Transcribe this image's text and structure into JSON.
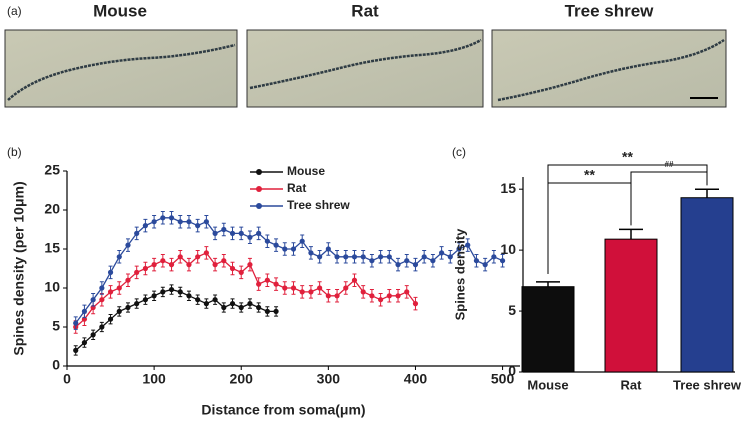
{
  "panel_a": {
    "label": "(a)",
    "images": [
      "Mouse",
      "Rat",
      "Tree shrew"
    ]
  },
  "chart_data": [
    {
      "type": "line",
      "panel_label": "(b)",
      "x_label": "Distance from soma(μm)",
      "y_label": "Spines density (per 10μm)",
      "xlim": [
        0,
        520
      ],
      "xticks": [
        0,
        100,
        200,
        300,
        400,
        500
      ],
      "ylim": [
        0,
        25
      ],
      "yticks": [
        0,
        5,
        10,
        15,
        20,
        25
      ],
      "legend": "top-center",
      "series": [
        {
          "name": "Mouse",
          "color": "#111111",
          "x": [
            10,
            20,
            30,
            40,
            50,
            60,
            70,
            80,
            90,
            100,
            110,
            120,
            130,
            140,
            150,
            160,
            170,
            180,
            190,
            200,
            210,
            220,
            230,
            240
          ],
          "values": [
            2,
            3,
            4,
            5,
            6,
            7,
            7.5,
            8,
            8.5,
            9,
            9.5,
            9.8,
            9.5,
            9,
            8.5,
            8,
            8.5,
            7.5,
            8,
            7.5,
            8,
            7.5,
            7,
            7
          ],
          "errors": [
            0.6,
            0.6,
            0.6,
            0.6,
            0.6,
            0.6,
            0.6,
            0.6,
            0.6,
            0.6,
            0.6,
            0.6,
            0.6,
            0.6,
            0.6,
            0.6,
            0.6,
            0.6,
            0.6,
            0.6,
            0.6,
            0.6,
            0.6,
            0.6
          ]
        },
        {
          "name": "Rat",
          "color": "#e0203c",
          "x": [
            10,
            20,
            30,
            40,
            50,
            60,
            70,
            80,
            90,
            100,
            110,
            120,
            130,
            140,
            150,
            160,
            170,
            180,
            190,
            200,
            210,
            220,
            230,
            240,
            250,
            260,
            270,
            280,
            290,
            300,
            310,
            320,
            330,
            340,
            350,
            360,
            370,
            380,
            390,
            400
          ],
          "values": [
            5,
            6,
            7.5,
            8.5,
            9.5,
            10,
            11,
            12,
            12.5,
            13,
            13.5,
            13,
            14,
            13,
            14,
            14.5,
            13,
            13.5,
            12.5,
            12,
            13,
            10.5,
            11,
            10.5,
            10,
            10,
            9.5,
            9.5,
            10,
            9,
            9,
            10,
            11,
            9.5,
            9,
            8.5,
            9,
            9,
            9.5,
            8
          ],
          "errors": [
            0.8,
            0.8,
            0.8,
            0.8,
            0.8,
            0.8,
            0.8,
            0.8,
            0.8,
            0.8,
            0.8,
            0.8,
            0.8,
            0.8,
            0.8,
            0.8,
            0.8,
            0.8,
            0.8,
            0.8,
            0.8,
            0.8,
            0.8,
            0.8,
            0.8,
            0.8,
            0.8,
            0.8,
            0.8,
            0.8,
            0.8,
            0.8,
            0.8,
            0.8,
            0.8,
            0.8,
            0.8,
            0.8,
            0.8,
            0.8
          ]
        },
        {
          "name": "Tree shrew",
          "color": "#2b4a9c",
          "x": [
            10,
            20,
            30,
            40,
            50,
            60,
            70,
            80,
            90,
            100,
            110,
            120,
            130,
            140,
            150,
            160,
            170,
            180,
            190,
            200,
            210,
            220,
            230,
            240,
            250,
            260,
            270,
            280,
            290,
            300,
            310,
            320,
            330,
            340,
            350,
            360,
            370,
            380,
            390,
            400,
            410,
            420,
            430,
            440,
            450,
            460,
            470,
            480,
            490,
            500
          ],
          "values": [
            5.5,
            7,
            8.5,
            10,
            12,
            14,
            15.5,
            17,
            18,
            18.5,
            19,
            19,
            18.5,
            18.5,
            18,
            18.5,
            17,
            17.5,
            17,
            17,
            16.5,
            17,
            16,
            15.5,
            15,
            15,
            16,
            14.5,
            14,
            15,
            14,
            14,
            14,
            14,
            13.5,
            14,
            14,
            13,
            13.5,
            13,
            14,
            13.5,
            14.5,
            14,
            15,
            15.5,
            13.5,
            13,
            14,
            13.5
          ],
          "errors": [
            0.8,
            0.8,
            0.8,
            0.8,
            0.8,
            0.8,
            0.8,
            0.8,
            0.8,
            0.8,
            0.8,
            0.8,
            0.8,
            0.8,
            0.8,
            0.8,
            0.8,
            0.8,
            0.8,
            0.8,
            0.8,
            0.8,
            0.8,
            0.8,
            0.8,
            0.8,
            0.8,
            0.8,
            0.8,
            0.8,
            0.8,
            0.8,
            0.8,
            0.8,
            0.8,
            0.8,
            0.8,
            0.8,
            0.8,
            0.8,
            0.8,
            0.8,
            0.8,
            0.8,
            0.8,
            0.8,
            0.8,
            0.8,
            0.8,
            0.8
          ]
        }
      ]
    },
    {
      "type": "bar",
      "panel_label": "(c)",
      "y_label": "Spines density",
      "categories": [
        "Mouse",
        "Rat",
        "Tree shrew"
      ],
      "values": [
        7.0,
        10.9,
        14.3
      ],
      "errors": [
        0.4,
        0.8,
        0.7
      ],
      "colors": [
        "#0d0d0d",
        "#d0103a",
        "#253f8f"
      ],
      "ylim": [
        0,
        16
      ],
      "yticks": [
        0,
        5,
        10,
        15
      ],
      "comparisons": [
        {
          "pair": [
            "Mouse",
            "Tree shrew"
          ],
          "label": "**"
        },
        {
          "pair": [
            "Mouse",
            "Rat"
          ],
          "label": "**"
        },
        {
          "pair": [
            "Rat",
            "Tree shrew"
          ],
          "label": "##"
        }
      ]
    }
  ]
}
